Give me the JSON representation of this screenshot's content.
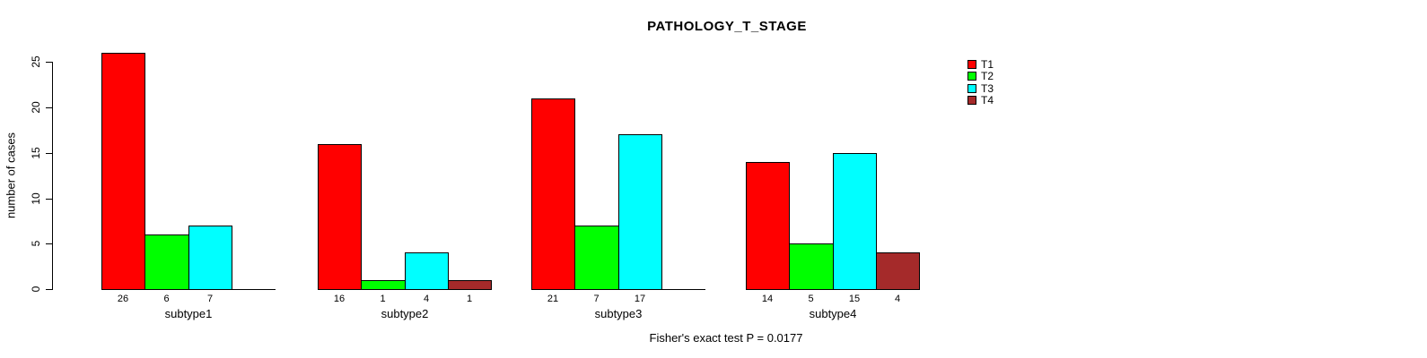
{
  "chart_data": {
    "type": "bar",
    "title": "PATHOLOGY_T_STAGE",
    "ylabel": "number of cases",
    "xlabel": "",
    "annotation": "Fisher's exact test P = 0.0177",
    "categories": [
      "subtype1",
      "subtype2",
      "subtype3",
      "subtype4"
    ],
    "series": [
      {
        "name": "T1",
        "color": "#FF0000",
        "values": [
          26,
          16,
          21,
          14
        ]
      },
      {
        "name": "T2",
        "color": "#00FF00",
        "values": [
          6,
          1,
          7,
          5
        ]
      },
      {
        "name": "T3",
        "color": "#00FFFF",
        "values": [
          7,
          4,
          17,
          15
        ]
      },
      {
        "name": "T4",
        "color": "#A52A2A",
        "values": [
          0,
          1,
          0,
          4
        ]
      }
    ],
    "yticks": [
      0,
      5,
      10,
      15,
      20,
      25
    ],
    "ylim": [
      0,
      26
    ],
    "grid": "off",
    "legend_position": "top-right",
    "bar_value_labels": "shown under bars, zeros omitted",
    "colors": {
      "T1": "#FF0000",
      "T2": "#00FF00",
      "T3": "#00FFFF",
      "T4": "#A52A2A",
      "axis": "#000000",
      "background": "#FFFFFF"
    }
  }
}
